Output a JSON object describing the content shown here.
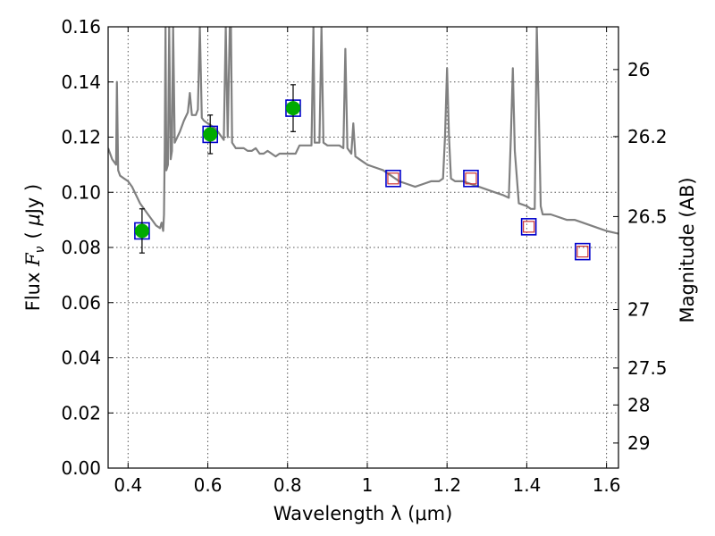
{
  "chart_data": {
    "type": "scatter",
    "xlabel": "Wavelength  λ (μm)",
    "ylabel": "Flux  F_ν  ( μJy )",
    "ylabel_parts": {
      "prefix": "Flux  ",
      "symbol": "F",
      "subscript": "ν",
      "open": "(  ",
      "unit_mu": "μ",
      "unit_rest": "Jy )"
    },
    "y2label": "Magnitude (AB)",
    "xlim": [
      0.35,
      1.63
    ],
    "ylim": [
      0.0,
      0.16
    ],
    "grid": true,
    "x_ticks": [
      {
        "value": 0.4,
        "label": "0.4"
      },
      {
        "value": 0.6,
        "label": "0.6"
      },
      {
        "value": 0.8,
        "label": "0.8"
      },
      {
        "value": 1.0,
        "label": "1"
      },
      {
        "value": 1.2,
        "label": "1.2"
      },
      {
        "value": 1.4,
        "label": "1.4"
      },
      {
        "value": 1.6,
        "label": "1.6"
      }
    ],
    "y_ticks": [
      {
        "value": 0.0,
        "label": "0.00"
      },
      {
        "value": 0.02,
        "label": "0.02"
      },
      {
        "value": 0.04,
        "label": "0.04"
      },
      {
        "value": 0.06,
        "label": "0.06"
      },
      {
        "value": 0.08,
        "label": "0.08"
      },
      {
        "value": 0.1,
        "label": "0.10"
      },
      {
        "value": 0.12,
        "label": "0.12"
      },
      {
        "value": 0.14,
        "label": "0.14"
      },
      {
        "value": 0.16,
        "label": "0.16"
      }
    ],
    "mag_ticks": [
      {
        "flux": 0.1445,
        "label": "26"
      },
      {
        "flux": 0.1202,
        "label": "26.2"
      },
      {
        "flux": 0.0912,
        "label": "26.5"
      },
      {
        "flux": 0.0575,
        "label": "27"
      },
      {
        "flux": 0.0363,
        "label": "27.5"
      },
      {
        "flux": 0.0229,
        "label": "28"
      },
      {
        "flux": 0.0091,
        "label": "29"
      }
    ],
    "series": [
      {
        "kind": "model_spectrum",
        "color": "#808080",
        "points": [
          [
            0.35,
            0.116
          ],
          [
            0.36,
            0.112
          ],
          [
            0.37,
            0.11
          ],
          [
            0.372,
            0.14
          ],
          [
            0.375,
            0.108
          ],
          [
            0.38,
            0.106
          ],
          [
            0.39,
            0.105
          ],
          [
            0.4,
            0.104
          ],
          [
            0.41,
            0.102
          ],
          [
            0.42,
            0.099
          ],
          [
            0.43,
            0.096
          ],
          [
            0.44,
            0.094
          ],
          [
            0.45,
            0.092
          ],
          [
            0.46,
            0.09
          ],
          [
            0.47,
            0.088
          ],
          [
            0.48,
            0.087
          ],
          [
            0.484,
            0.089
          ],
          [
            0.488,
            0.086
          ],
          [
            0.49,
            0.092
          ],
          [
            0.492,
            0.115
          ],
          [
            0.494,
            0.16
          ],
          [
            0.496,
            0.108
          ],
          [
            0.5,
            0.11
          ],
          [
            0.503,
            0.16
          ],
          [
            0.507,
            0.112
          ],
          [
            0.51,
            0.115
          ],
          [
            0.513,
            0.16
          ],
          [
            0.517,
            0.118
          ],
          [
            0.53,
            0.122
          ],
          [
            0.54,
            0.126
          ],
          [
            0.55,
            0.129
          ],
          [
            0.555,
            0.136
          ],
          [
            0.56,
            0.128
          ],
          [
            0.57,
            0.128
          ],
          [
            0.575,
            0.13
          ],
          [
            0.58,
            0.16
          ],
          [
            0.585,
            0.127
          ],
          [
            0.59,
            0.126
          ],
          [
            0.6,
            0.125
          ],
          [
            0.61,
            0.124
          ],
          [
            0.62,
            0.123
          ],
          [
            0.63,
            0.121
          ],
          [
            0.64,
            0.119
          ],
          [
            0.645,
            0.16
          ],
          [
            0.65,
            0.12
          ],
          [
            0.655,
            0.16
          ],
          [
            0.658,
            0.16
          ],
          [
            0.661,
            0.118
          ],
          [
            0.67,
            0.116
          ],
          [
            0.68,
            0.116
          ],
          [
            0.69,
            0.116
          ],
          [
            0.7,
            0.115
          ],
          [
            0.71,
            0.115
          ],
          [
            0.72,
            0.116
          ],
          [
            0.73,
            0.114
          ],
          [
            0.74,
            0.114
          ],
          [
            0.75,
            0.115
          ],
          [
            0.76,
            0.114
          ],
          [
            0.77,
            0.113
          ],
          [
            0.78,
            0.114
          ],
          [
            0.79,
            0.114
          ],
          [
            0.8,
            0.114
          ],
          [
            0.81,
            0.114
          ],
          [
            0.82,
            0.114
          ],
          [
            0.83,
            0.117
          ],
          [
            0.84,
            0.117
          ],
          [
            0.85,
            0.117
          ],
          [
            0.86,
            0.117
          ],
          [
            0.865,
            0.16
          ],
          [
            0.868,
            0.118
          ],
          [
            0.88,
            0.118
          ],
          [
            0.885,
            0.16
          ],
          [
            0.89,
            0.118
          ],
          [
            0.9,
            0.117
          ],
          [
            0.91,
            0.117
          ],
          [
            0.92,
            0.117
          ],
          [
            0.93,
            0.117
          ],
          [
            0.94,
            0.116
          ],
          [
            0.945,
            0.152
          ],
          [
            0.95,
            0.116
          ],
          [
            0.96,
            0.114
          ],
          [
            0.965,
            0.125
          ],
          [
            0.97,
            0.113
          ],
          [
            0.98,
            0.112
          ],
          [
            0.99,
            0.111
          ],
          [
            1.0,
            0.11
          ],
          [
            1.02,
            0.109
          ],
          [
            1.04,
            0.108
          ],
          [
            1.06,
            0.106
          ],
          [
            1.08,
            0.104
          ],
          [
            1.1,
            0.103
          ],
          [
            1.12,
            0.102
          ],
          [
            1.14,
            0.103
          ],
          [
            1.16,
            0.104
          ],
          [
            1.18,
            0.104
          ],
          [
            1.19,
            0.105
          ],
          [
            1.195,
            0.12
          ],
          [
            1.2,
            0.145
          ],
          [
            1.205,
            0.12
          ],
          [
            1.21,
            0.105
          ],
          [
            1.22,
            0.104
          ],
          [
            1.24,
            0.104
          ],
          [
            1.26,
            0.103
          ],
          [
            1.28,
            0.102
          ],
          [
            1.3,
            0.101
          ],
          [
            1.32,
            0.1
          ],
          [
            1.34,
            0.099
          ],
          [
            1.355,
            0.098
          ],
          [
            1.36,
            0.12
          ],
          [
            1.365,
            0.145
          ],
          [
            1.37,
            0.115
          ],
          [
            1.38,
            0.096
          ],
          [
            1.4,
            0.095
          ],
          [
            1.41,
            0.094
          ],
          [
            1.42,
            0.094
          ],
          [
            1.425,
            0.16
          ],
          [
            1.43,
            0.13
          ],
          [
            1.435,
            0.095
          ],
          [
            1.44,
            0.092
          ],
          [
            1.46,
            0.092
          ],
          [
            1.48,
            0.091
          ],
          [
            1.5,
            0.09
          ],
          [
            1.52,
            0.09
          ],
          [
            1.54,
            0.089
          ],
          [
            1.56,
            0.088
          ],
          [
            1.58,
            0.087
          ],
          [
            1.6,
            0.086
          ],
          [
            1.63,
            0.085
          ]
        ]
      },
      {
        "kind": "observed",
        "marker_fill": "#00aa00",
        "box_color": "#0000cc",
        "err_color": "#000000",
        "points": [
          {
            "x": 0.435,
            "y": 0.086,
            "err": 0.008
          },
          {
            "x": 0.606,
            "y": 0.121,
            "err": 0.007
          },
          {
            "x": 0.814,
            "y": 0.1305,
            "err": 0.0085
          }
        ]
      },
      {
        "kind": "model_synthetic",
        "outer_color": "#0000cc",
        "inner_color": "#cc3333",
        "points": [
          {
            "x": 1.065,
            "y": 0.105
          },
          {
            "x": 1.26,
            "y": 0.105
          },
          {
            "x": 1.405,
            "y": 0.0875
          },
          {
            "x": 1.54,
            "y": 0.0785
          }
        ]
      }
    ]
  }
}
